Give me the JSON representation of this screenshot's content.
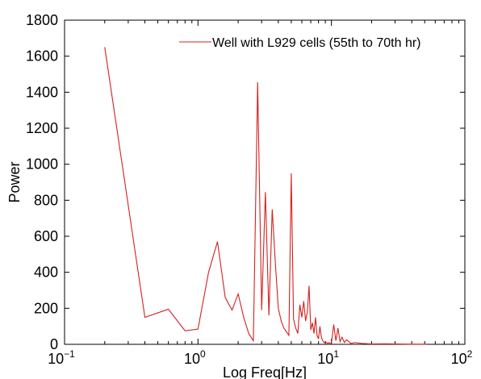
{
  "chart_data": {
    "type": "line",
    "title": "",
    "xlabel": "Log Freq[Hz]",
    "ylabel": "Power",
    "x_scale": "log",
    "xlim": [
      0.1,
      100
    ],
    "ylim": [
      0,
      1800
    ],
    "x_ticks": [
      {
        "value": 0.1,
        "base": "10",
        "exp": "−1"
      },
      {
        "value": 1,
        "base": "10",
        "exp": "0"
      },
      {
        "value": 10,
        "base": "10",
        "exp": "1"
      },
      {
        "value": 100,
        "base": "10",
        "exp": "2"
      }
    ],
    "y_ticks": [
      0,
      200,
      400,
      600,
      800,
      1000,
      1200,
      1400,
      1600,
      1800
    ],
    "grid": false,
    "legend_position": "top-right",
    "series": [
      {
        "name": "Well with L929 cells (55th to 70th hr)",
        "color": "#d42020",
        "x": [
          0.2,
          0.4,
          0.6,
          0.8,
          1.0,
          1.2,
          1.4,
          1.6,
          1.8,
          2.0,
          2.2,
          2.4,
          2.6,
          2.8,
          3.0,
          3.2,
          3.4,
          3.6,
          3.8,
          4.0,
          4.2,
          4.4,
          4.6,
          4.8,
          5.0,
          5.2,
          5.4,
          5.6,
          5.8,
          6.0,
          6.2,
          6.4,
          6.6,
          6.8,
          7.0,
          7.2,
          7.4,
          7.6,
          7.8,
          8.0,
          8.2,
          8.4,
          8.6,
          8.8,
          9.0,
          9.2,
          9.4,
          9.6,
          9.8,
          10.0,
          10.4,
          10.8,
          11.2,
          11.6,
          12.0,
          12.5,
          13.0,
          14.0,
          15.0,
          17.0,
          20.0,
          25.0,
          30.0,
          40.0,
          52.0
        ],
        "y": [
          1650,
          150,
          195,
          75,
          85,
          400,
          570,
          260,
          190,
          280,
          150,
          60,
          20,
          1455,
          190,
          845,
          160,
          750,
          450,
          200,
          130,
          90,
          70,
          50,
          950,
          140,
          90,
          60,
          220,
          150,
          240,
          130,
          180,
          325,
          80,
          120,
          60,
          150,
          50,
          30,
          100,
          40,
          20,
          10,
          15,
          10,
          5,
          10,
          5,
          5,
          110,
          20,
          90,
          15,
          40,
          10,
          25,
          5,
          10,
          5,
          2,
          3,
          2,
          1,
          1
        ]
      }
    ]
  }
}
